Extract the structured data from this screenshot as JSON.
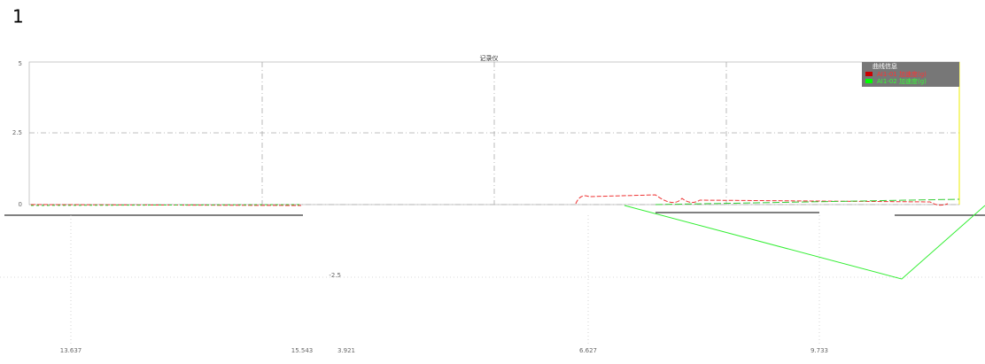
{
  "page_number": "1",
  "title": "记录仪",
  "legend": {
    "title": "曲线信息",
    "items": [
      "AI1-01 加速度(g)",
      "AI1-02 加速度(g)"
    ]
  },
  "upper_yticks": [
    "5",
    "2.5",
    "0"
  ],
  "lower_yticks": [
    "-2.5"
  ],
  "xticks": [
    "13.637",
    "15.543",
    "3.921",
    "6.627",
    "9.733"
  ]
}
